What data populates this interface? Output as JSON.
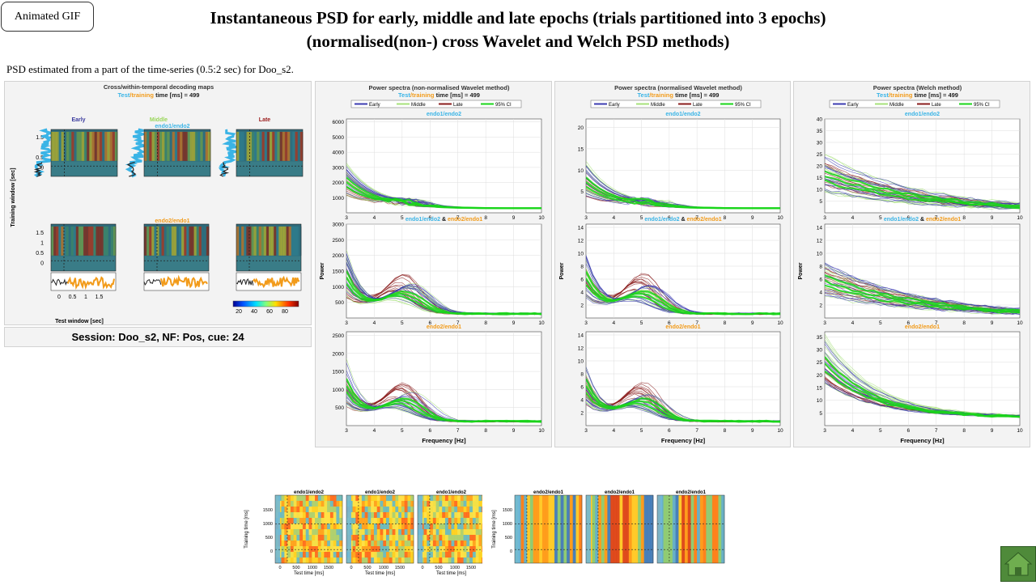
{
  "animated_gif_button": "Animated  GIF",
  "title_line1": "Instantaneous PSD for early, middle and late epochs (trials partitioned into 3 epochs)",
  "title_line2": "(normalised(non-) cross Wavelet and Welch PSD methods)",
  "subtitle": "PSD estimated from a part of the time-series (0.5:2  sec) for Doo_s2.",
  "decoding": {
    "title": "Cross/within-temporal decoding maps",
    "sub_test": "Test",
    "sub_training": "/training",
    "sub_rest": " time [ms] = 499",
    "epochs": [
      "Early",
      "Middle",
      "Late"
    ],
    "row1_label": "endo1/endo2",
    "row2_label": "endo2/endo1",
    "ylabel": "Training window [sec]",
    "yticks": [
      "1.5",
      "1",
      "0.5",
      "0"
    ],
    "xticks": [
      "0",
      "0.5",
      "1",
      "1.5"
    ],
    "xlabel": "Test window [sec]",
    "colorbar_ticks": [
      "20",
      "40",
      "60",
      "80"
    ],
    "colors": {
      "early": "#3b3b9e",
      "middle": "#9ad65a",
      "late": "#9b1c1c",
      "test": "#3ab4e6",
      "training": "#f29b1a"
    }
  },
  "session_text": "Session: Doo_s2, NF: Pos, cue: 24",
  "psd_panels": [
    {
      "title": "Power spectra (non-normalised Wavelet method)",
      "legend": [
        "Early",
        "Middle",
        "Late",
        "95% CI"
      ],
      "rows": [
        {
          "label_a": "endo1/endo2",
          "amp": "",
          "label_b": "",
          "yticks": [
            "6000",
            "5000",
            "4000",
            "3000",
            "2000",
            "1000"
          ],
          "ymax": 6200,
          "kind": "decay"
        },
        {
          "label_a": "endo1/endo2",
          "amp": " & ",
          "label_b": "endo2/endo1",
          "yticks": [
            "3000",
            "2500",
            "2000",
            "1500",
            "1000",
            "500"
          ],
          "ymax": 3000,
          "kind": "bump"
        },
        {
          "label_a": "",
          "amp": "",
          "label_b": "endo2/endo1",
          "yticks": [
            "2500",
            "2000",
            "1500",
            "1000",
            "500"
          ],
          "ymax": 2600,
          "kind": "bump"
        }
      ]
    },
    {
      "title": "Power spectra (normalised Wavelet method)",
      "legend": [
        "Early",
        "Middle",
        "Late",
        "95% CI"
      ],
      "rows": [
        {
          "label_a": "endo1/endo2",
          "amp": "",
          "label_b": "",
          "yticks": [
            "20",
            "15",
            "10",
            "5"
          ],
          "ymax": 22,
          "kind": "decay"
        },
        {
          "label_a": "endo1/endo2",
          "amp": " & ",
          "label_b": "endo2/endo1",
          "yticks": [
            "14",
            "12",
            "10",
            "8",
            "6",
            "4",
            "2"
          ],
          "ymax": 14.5,
          "kind": "bump"
        },
        {
          "label_a": "",
          "amp": "",
          "label_b": "endo2/endo1",
          "yticks": [
            "14",
            "12",
            "10",
            "8",
            "6",
            "4",
            "2"
          ],
          "ymax": 14.5,
          "kind": "bump"
        }
      ]
    },
    {
      "title": "Power spectra (Welch method)",
      "legend": [
        "Early",
        "Middle",
        "Late",
        "95% CI"
      ],
      "rows": [
        {
          "label_a": "endo1/endo2",
          "amp": "",
          "label_b": "",
          "yticks": [
            "40",
            "35",
            "30",
            "25",
            "20",
            "15",
            "10",
            "5"
          ],
          "ymax": 40,
          "kind": "welch"
        },
        {
          "label_a": "endo1/endo2",
          "amp": " & ",
          "label_b": "endo2/endo1",
          "yticks": [
            "14",
            "12",
            "10",
            "8",
            "6",
            "4",
            "2"
          ],
          "ymax": 14.5,
          "kind": "welch"
        },
        {
          "label_a": "",
          "amp": "",
          "label_b": "endo2/endo1",
          "yticks": [
            "35",
            "30",
            "25",
            "20",
            "15",
            "10",
            "5"
          ],
          "ymax": 37,
          "kind": "welch2"
        }
      ]
    }
  ],
  "psd_ylabel": "Power",
  "psd_xlabel": "Frequency [Hz]",
  "psd_xticks": [
    "3",
    "4",
    "5",
    "6",
    "7",
    "8",
    "9",
    "10"
  ],
  "bottom_maps": {
    "left_group": [
      "endo1/endo2",
      "endo1/endo2",
      "endo1/endo2"
    ],
    "right_group": [
      "endo2/endo1",
      "endo2/endo1",
      "endo2/endo1"
    ],
    "ylabel": "Training time [ms]",
    "xlabel": "Test time [ms]",
    "yticks": [
      "1500",
      "1000",
      "500",
      "0"
    ],
    "xticks": [
      "0",
      "500",
      "1000",
      "1500"
    ]
  },
  "home_icon": "home-icon"
}
